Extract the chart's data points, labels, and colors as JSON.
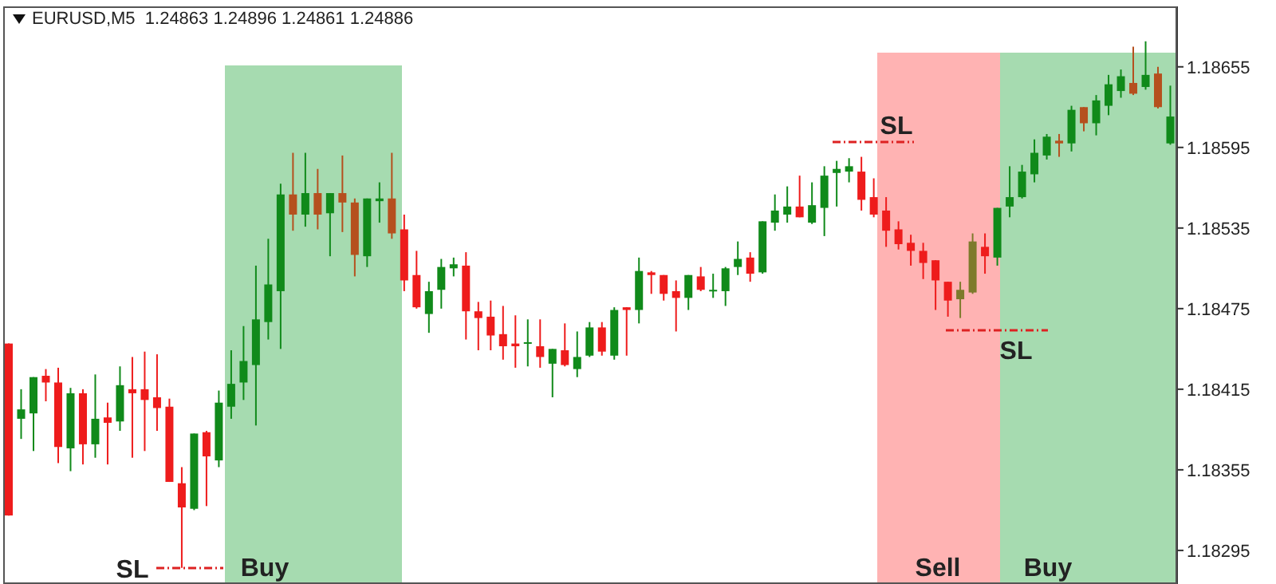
{
  "chart_data": {
    "type": "candlestick",
    "title": "EURUSD,M5  1.24863 1.24896 1.24861 1.24886",
    "categories": [
      null,
      null,
      null,
      null,
      null,
      null,
      null,
      null,
      null,
      null,
      null,
      null,
      null,
      null,
      null,
      null,
      null,
      null,
      null,
      null,
      null,
      null,
      null,
      null,
      null,
      null,
      null,
      null,
      null,
      null,
      null,
      null,
      null,
      null,
      null,
      null,
      null,
      null,
      null,
      null,
      null,
      null,
      null,
      null,
      null,
      null,
      null,
      null,
      null,
      null,
      null,
      null,
      null,
      null,
      null,
      null,
      null,
      null,
      null,
      null,
      null,
      null,
      null,
      null,
      null,
      null,
      null,
      null,
      null,
      null,
      null,
      null,
      null,
      null,
      null,
      null,
      null,
      null,
      null,
      null,
      null,
      null,
      null,
      null,
      null,
      null,
      null,
      null,
      null,
      null,
      null,
      null,
      null,
      null,
      null
    ],
    "ohlc": [
      [
        1.18449,
        1.18449,
        1.18321,
        1.18321
      ],
      [
        1.18393,
        1.18415,
        1.18378,
        1.184
      ],
      [
        1.18397,
        1.18424,
        1.18369,
        1.18424
      ],
      [
        1.18425,
        1.1843,
        1.18406,
        1.1842
      ],
      [
        1.1842,
        1.18431,
        1.1836,
        1.18372
      ],
      [
        1.18371,
        1.18416,
        1.18354,
        1.18412
      ],
      [
        1.18412,
        1.18415,
        1.18359,
        1.18374
      ],
      [
        1.18374,
        1.18426,
        1.18364,
        1.18393
      ],
      [
        1.18394,
        1.18405,
        1.18359,
        1.1839
      ],
      [
        1.18391,
        1.18432,
        1.18384,
        1.18418
      ],
      [
        1.18415,
        1.18439,
        1.18364,
        1.18412
      ],
      [
        1.18415,
        1.18443,
        1.18369,
        1.18407
      ],
      [
        1.18409,
        1.18441,
        1.18384,
        1.18401
      ],
      [
        1.18402,
        1.18408,
        1.18346,
        1.18346
      ],
      [
        1.18345,
        1.18357,
        1.18282,
        1.18327
      ],
      [
        1.18326,
        1.18382,
        1.18325,
        1.18382
      ],
      [
        1.18383,
        1.18384,
        1.18328,
        1.18365
      ],
      [
        1.18362,
        1.18414,
        1.18357,
        1.18405
      ],
      [
        1.18402,
        1.18444,
        1.18393,
        1.18419
      ],
      [
        1.1842,
        1.18462,
        1.18407,
        1.18436
      ],
      [
        1.18433,
        1.18507,
        1.18388,
        1.18467
      ],
      [
        1.18465,
        1.18527,
        1.18452,
        1.18493
      ],
      [
        1.18488,
        1.18568,
        1.18445,
        1.1856
      ],
      [
        1.1856,
        1.18591,
        1.18533,
        1.18545
      ],
      [
        1.18545,
        1.18591,
        1.18536,
        1.18561
      ],
      [
        1.18561,
        1.18579,
        1.18534,
        1.18545
      ],
      [
        1.18546,
        1.18561,
        1.18514,
        1.18561
      ],
      [
        1.18561,
        1.18589,
        1.18532,
        1.18554
      ],
      [
        1.18554,
        1.18557,
        1.18499,
        1.18515
      ],
      [
        1.18514,
        1.18557,
        1.18506,
        1.18557
      ],
      [
        1.18555,
        1.18569,
        1.18539,
        1.18557
      ],
      [
        1.18557,
        1.18591,
        1.18527,
        1.18531
      ],
      [
        1.18534,
        1.18545,
        1.18488,
        1.18496
      ],
      [
        1.185,
        1.18518,
        1.18475,
        1.18476
      ],
      [
        1.18471,
        1.18495,
        1.18457,
        1.18488
      ],
      [
        1.18489,
        1.18512,
        1.18475,
        1.18506
      ],
      [
        1.18505,
        1.18513,
        1.18499,
        1.18508
      ],
      [
        1.18507,
        1.18517,
        1.18452,
        1.18473
      ],
      [
        1.18473,
        1.1848,
        1.18444,
        1.18468
      ],
      [
        1.18469,
        1.18481,
        1.18444,
        1.18455
      ],
      [
        1.18456,
        1.18477,
        1.18437,
        1.18447
      ],
      [
        1.18449,
        1.1847,
        1.18431,
        1.18447
      ],
      [
        1.18449,
        1.18467,
        1.18432,
        1.1845
      ],
      [
        1.18447,
        1.18467,
        1.18431,
        1.18439
      ],
      [
        1.18434,
        1.18445,
        1.18409,
        1.18445
      ],
      [
        1.18444,
        1.18464,
        1.18432,
        1.18433
      ],
      [
        1.1843,
        1.18458,
        1.18424,
        1.18439
      ],
      [
        1.1844,
        1.18465,
        1.18439,
        1.18461
      ],
      [
        1.18461,
        1.18465,
        1.1844,
        1.18443
      ],
      [
        1.1844,
        1.18476,
        1.18437,
        1.18474
      ],
      [
        1.18476,
        1.18476,
        1.1844,
        1.18474
      ],
      [
        1.18474,
        1.18513,
        1.18464,
        1.18503
      ],
      [
        1.18502,
        1.18503,
        1.18486,
        1.185
      ],
      [
        1.185,
        1.185,
        1.18481,
        1.18486
      ],
      [
        1.18488,
        1.18496,
        1.18458,
        1.18483
      ],
      [
        1.18483,
        1.185,
        1.18474,
        1.185
      ],
      [
        1.18499,
        1.18506,
        1.18488,
        1.18489
      ],
      [
        1.18488,
        1.18501,
        1.18483,
        1.18489
      ],
      [
        1.18488,
        1.18506,
        1.18477,
        1.18505
      ],
      [
        1.18506,
        1.18525,
        1.185,
        1.18512
      ],
      [
        1.18513,
        1.18517,
        1.18495,
        1.18501
      ],
      [
        1.18502,
        1.1854,
        1.18501,
        1.1854
      ],
      [
        1.18539,
        1.1856,
        1.18533,
        1.18548
      ],
      [
        1.18545,
        1.18566,
        1.18539,
        1.18551
      ],
      [
        1.18551,
        1.18574,
        1.18543,
        1.18543
      ],
      [
        1.18539,
        1.18569,
        1.18538,
        1.18552
      ],
      [
        1.1855,
        1.18581,
        1.18529,
        1.18574
      ],
      [
        1.18576,
        1.18585,
        1.18551,
        1.18579
      ],
      [
        1.18577,
        1.18587,
        1.18569,
        1.18581
      ],
      [
        1.18577,
        1.18588,
        1.18548,
        1.18556
      ],
      [
        1.18558,
        1.18572,
        1.18543,
        1.18545
      ],
      [
        1.18548,
        1.18558,
        1.18521,
        1.18533
      ],
      [
        1.18534,
        1.1854,
        1.18519,
        1.18523
      ],
      [
        1.18524,
        1.1853,
        1.18507,
        1.18518
      ],
      [
        1.18518,
        1.18524,
        1.18497,
        1.18509
      ],
      [
        1.18511,
        1.18511,
        1.18474,
        1.18496
      ],
      [
        1.18495,
        1.18495,
        1.18469,
        1.18481
      ],
      [
        1.18482,
        1.18495,
        1.18468,
        1.18489
      ],
      [
        1.18487,
        1.18531,
        1.18486,
        1.18525
      ],
      [
        1.18521,
        1.18531,
        1.18501,
        1.18514
      ],
      [
        1.18513,
        1.1855,
        1.18507,
        1.1855
      ],
      [
        1.18551,
        1.18581,
        1.18543,
        1.18558
      ],
      [
        1.18558,
        1.18582,
        1.18557,
        1.18577
      ],
      [
        1.18575,
        1.18601,
        1.18569,
        1.18591
      ],
      [
        1.18589,
        1.18605,
        1.18586,
        1.18603
      ],
      [
        1.186,
        1.18605,
        1.18588,
        1.18598
      ],
      [
        1.18598,
        1.18626,
        1.18592,
        1.18623
      ],
      [
        1.18625,
        1.18625,
        1.18607,
        1.18613
      ],
      [
        1.18613,
        1.18634,
        1.18604,
        1.1863
      ],
      [
        1.18626,
        1.18649,
        1.18619,
        1.18642
      ],
      [
        1.18637,
        1.18653,
        1.18632,
        1.18648
      ],
      [
        1.18643,
        1.1867,
        1.18634,
        1.18635
      ],
      [
        1.1864,
        1.18674,
        1.18638,
        1.18649
      ],
      [
        1.1865,
        1.18655,
        1.18624,
        1.18625
      ],
      [
        1.18598,
        1.18641,
        1.18597,
        1.18618
      ]
    ],
    "colors": [
      "#ee1c1c",
      "#108a1a",
      "#108a1a",
      "#ee1c1c",
      "#ee1c1c",
      "#108a1a",
      "#ee1c1c",
      "#108a1a",
      "#ee1c1c",
      "#108a1a",
      "#ee1c1c",
      "#ee1c1c",
      "#ee1c1c",
      "#ee1c1c",
      "#ee1c1c",
      "#108a1a",
      "#ee1c1c",
      "#108a1a",
      "#108a1a",
      "#108a1a",
      "#108a1a",
      "#108a1a",
      "#108a1a",
      "#b5501e",
      "#108a1a",
      "#b5501e",
      "#108a1a",
      "#b5501e",
      "#b5501e",
      "#108a1a",
      "#108a1a",
      "#b5501e",
      "#ee1c1c",
      "#ee1c1c",
      "#108a1a",
      "#108a1a",
      "#108a1a",
      "#ee1c1c",
      "#ee1c1c",
      "#ee1c1c",
      "#ee1c1c",
      "#ee1c1c",
      "#108a1a",
      "#ee1c1c",
      "#108a1a",
      "#ee1c1c",
      "#108a1a",
      "#108a1a",
      "#ee1c1c",
      "#108a1a",
      "#ee1c1c",
      "#108a1a",
      "#ee1c1c",
      "#ee1c1c",
      "#ee1c1c",
      "#108a1a",
      "#ee1c1c",
      "#108a1a",
      "#108a1a",
      "#108a1a",
      "#ee1c1c",
      "#108a1a",
      "#108a1a",
      "#108a1a",
      "#ee1c1c",
      "#108a1a",
      "#108a1a",
      "#108a1a",
      "#108a1a",
      "#ee1c1c",
      "#ee1c1c",
      "#ee1c1c",
      "#ee1c1c",
      "#ee1c1c",
      "#ee1c1c",
      "#ee1c1c",
      "#ee1c1c",
      "#7d7a2b",
      "#7d7a2b",
      "#ee1c1c",
      "#108a1a",
      "#108a1a",
      "#108a1a",
      "#108a1a",
      "#108a1a",
      "#b5501e",
      "#108a1a",
      "#b5501e",
      "#108a1a",
      "#108a1a",
      "#108a1a",
      "#b5501e",
      "#108a1a",
      "#b5501e",
      "#108a1a"
    ],
    "ylim": [
      1.1827,
      1.187
    ],
    "yticks": [
      1.18295,
      1.18355,
      1.18415,
      1.18475,
      1.18535,
      1.18595,
      1.18655
    ],
    "tick_labels": "y",
    "annotations": [
      "SL",
      "Buy",
      "SL",
      "SL",
      "Sell",
      "Buy"
    ]
  }
}
